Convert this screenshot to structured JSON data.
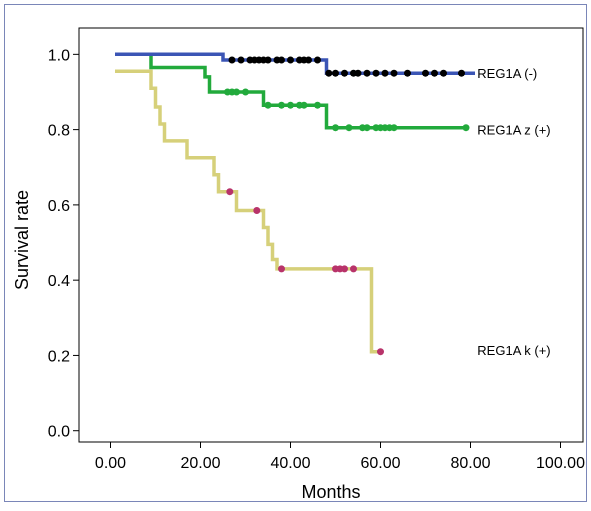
{
  "chart_data": {
    "type": "line",
    "step": true,
    "title": "",
    "xlabel": "Months",
    "ylabel": "Survival rate",
    "xlim": [
      -7,
      105
    ],
    "ylim": [
      -0.03,
      1.07
    ],
    "xticks": [
      0,
      20,
      40,
      60,
      80,
      100
    ],
    "xtick_labels": [
      "0.00",
      "20.00",
      "40.00",
      "60.00",
      "80.00",
      "100.00"
    ],
    "yticks": [
      0.0,
      0.2,
      0.4,
      0.6,
      0.8,
      1.0
    ],
    "ytick_labels": [
      "0.0",
      "0.2",
      "0.4",
      "0.6",
      "0.8",
      "1.0"
    ],
    "grid": false,
    "legend": "none",
    "series": [
      {
        "name": "REG1A (-)",
        "label_at": [
          81.5,
          0.95
        ],
        "color": "#3b55b5",
        "marker_color": "#000000",
        "curve": [
          [
            1,
            1.0
          ],
          [
            25,
            1.0
          ],
          [
            25,
            0.985
          ],
          [
            48,
            0.985
          ],
          [
            48,
            0.95
          ],
          [
            81,
            0.95
          ]
        ],
        "censored": [
          [
            27,
            0.985
          ],
          [
            29,
            0.985
          ],
          [
            31,
            0.985
          ],
          [
            32,
            0.985
          ],
          [
            33,
            0.985
          ],
          [
            34,
            0.985
          ],
          [
            35,
            0.985
          ],
          [
            37,
            0.985
          ],
          [
            38,
            0.985
          ],
          [
            40,
            0.985
          ],
          [
            42,
            0.985
          ],
          [
            43,
            0.985
          ],
          [
            44,
            0.985
          ],
          [
            46,
            0.985
          ],
          [
            48.5,
            0.95
          ],
          [
            50,
            0.95
          ],
          [
            52,
            0.95
          ],
          [
            54,
            0.95
          ],
          [
            55,
            0.95
          ],
          [
            57,
            0.95
          ],
          [
            59,
            0.95
          ],
          [
            61,
            0.95
          ],
          [
            63,
            0.95
          ],
          [
            66,
            0.95
          ],
          [
            70,
            0.95
          ],
          [
            72,
            0.95
          ],
          [
            74,
            0.95
          ],
          [
            78,
            0.95
          ]
        ]
      },
      {
        "name": "REG1A z (+)",
        "label_at": [
          81.5,
          0.8
        ],
        "color": "#22aa3c",
        "marker_color": "#22aa3c",
        "curve": [
          [
            1,
            1.0
          ],
          [
            9,
            1.0
          ],
          [
            9,
            0.965
          ],
          [
            21,
            0.965
          ],
          [
            21,
            0.94
          ],
          [
            22,
            0.94
          ],
          [
            22,
            0.9
          ],
          [
            34,
            0.9
          ],
          [
            34,
            0.865
          ],
          [
            48,
            0.865
          ],
          [
            48,
            0.805
          ],
          [
            79,
            0.805
          ]
        ],
        "censored": [
          [
            26,
            0.9
          ],
          [
            27,
            0.9
          ],
          [
            28,
            0.9
          ],
          [
            30,
            0.9
          ],
          [
            35,
            0.865
          ],
          [
            38,
            0.865
          ],
          [
            40,
            0.865
          ],
          [
            42,
            0.865
          ],
          [
            43,
            0.865
          ],
          [
            46,
            0.865
          ],
          [
            50,
            0.805
          ],
          [
            53,
            0.805
          ],
          [
            56,
            0.805
          ],
          [
            57,
            0.805
          ],
          [
            59,
            0.805
          ],
          [
            60,
            0.805
          ],
          [
            61,
            0.805
          ],
          [
            62,
            0.805
          ],
          [
            63,
            0.805
          ],
          [
            79,
            0.805
          ]
        ]
      },
      {
        "name": "REG1A k (+)",
        "label_at": [
          81.5,
          0.215
        ],
        "color": "#d6d07a",
        "marker_color": "#b8336a",
        "curve": [
          [
            1,
            0.955
          ],
          [
            9,
            0.955
          ],
          [
            9,
            0.91
          ],
          [
            10,
            0.91
          ],
          [
            10,
            0.86
          ],
          [
            11,
            0.86
          ],
          [
            11,
            0.815
          ],
          [
            12,
            0.815
          ],
          [
            12,
            0.77
          ],
          [
            17,
            0.77
          ],
          [
            17,
            0.725
          ],
          [
            23,
            0.725
          ],
          [
            23,
            0.68
          ],
          [
            24,
            0.68
          ],
          [
            24,
            0.635
          ],
          [
            28,
            0.635
          ],
          [
            28,
            0.585
          ],
          [
            34,
            0.585
          ],
          [
            34,
            0.54
          ],
          [
            35,
            0.54
          ],
          [
            35,
            0.495
          ],
          [
            36,
            0.495
          ],
          [
            36,
            0.455
          ],
          [
            37,
            0.455
          ],
          [
            37,
            0.43
          ],
          [
            58,
            0.43
          ],
          [
            58,
            0.21
          ],
          [
            60,
            0.21
          ]
        ],
        "censored": [
          [
            26.5,
            0.635
          ],
          [
            32.5,
            0.585
          ],
          [
            38,
            0.43
          ],
          [
            50,
            0.43
          ],
          [
            51,
            0.43
          ],
          [
            52,
            0.43
          ],
          [
            54,
            0.43
          ],
          [
            60,
            0.21
          ]
        ]
      }
    ]
  }
}
